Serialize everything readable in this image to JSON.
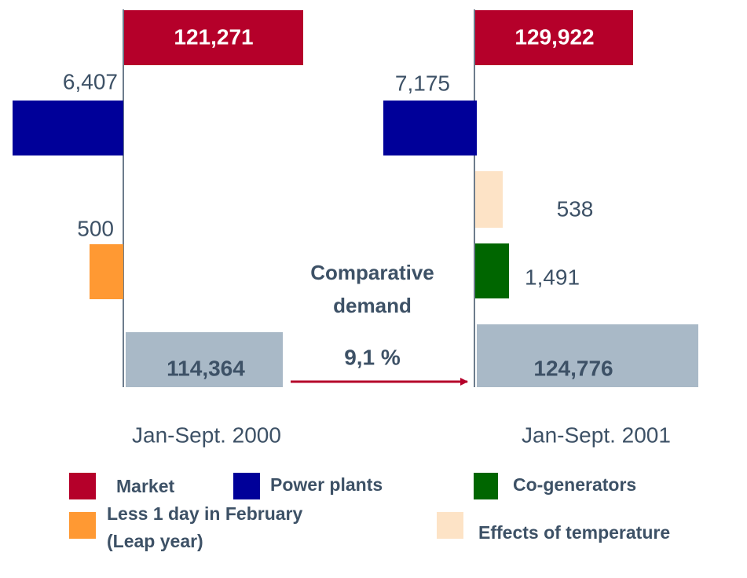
{
  "left": {
    "period": "Jan-Sept. 2000",
    "market": "121,271",
    "power_plants": "6,407",
    "leap_year": "500",
    "base": "114,364"
  },
  "right": {
    "period": "Jan-Sept. 2001",
    "market": "129,922",
    "power_plants": "7,175",
    "temperature": "538",
    "co_generators": "1,491",
    "base": "124,776"
  },
  "comparison": {
    "lines": [
      "Comparative",
      "demand"
    ],
    "value": "9,1 %"
  },
  "legend": {
    "market": "Market",
    "power_plants": "Power plants",
    "co_generators": "Co-generators",
    "leap_year": [
      "Less 1 day in February",
      "(Leap year)"
    ],
    "temperature": "Effects of temperature"
  }
}
